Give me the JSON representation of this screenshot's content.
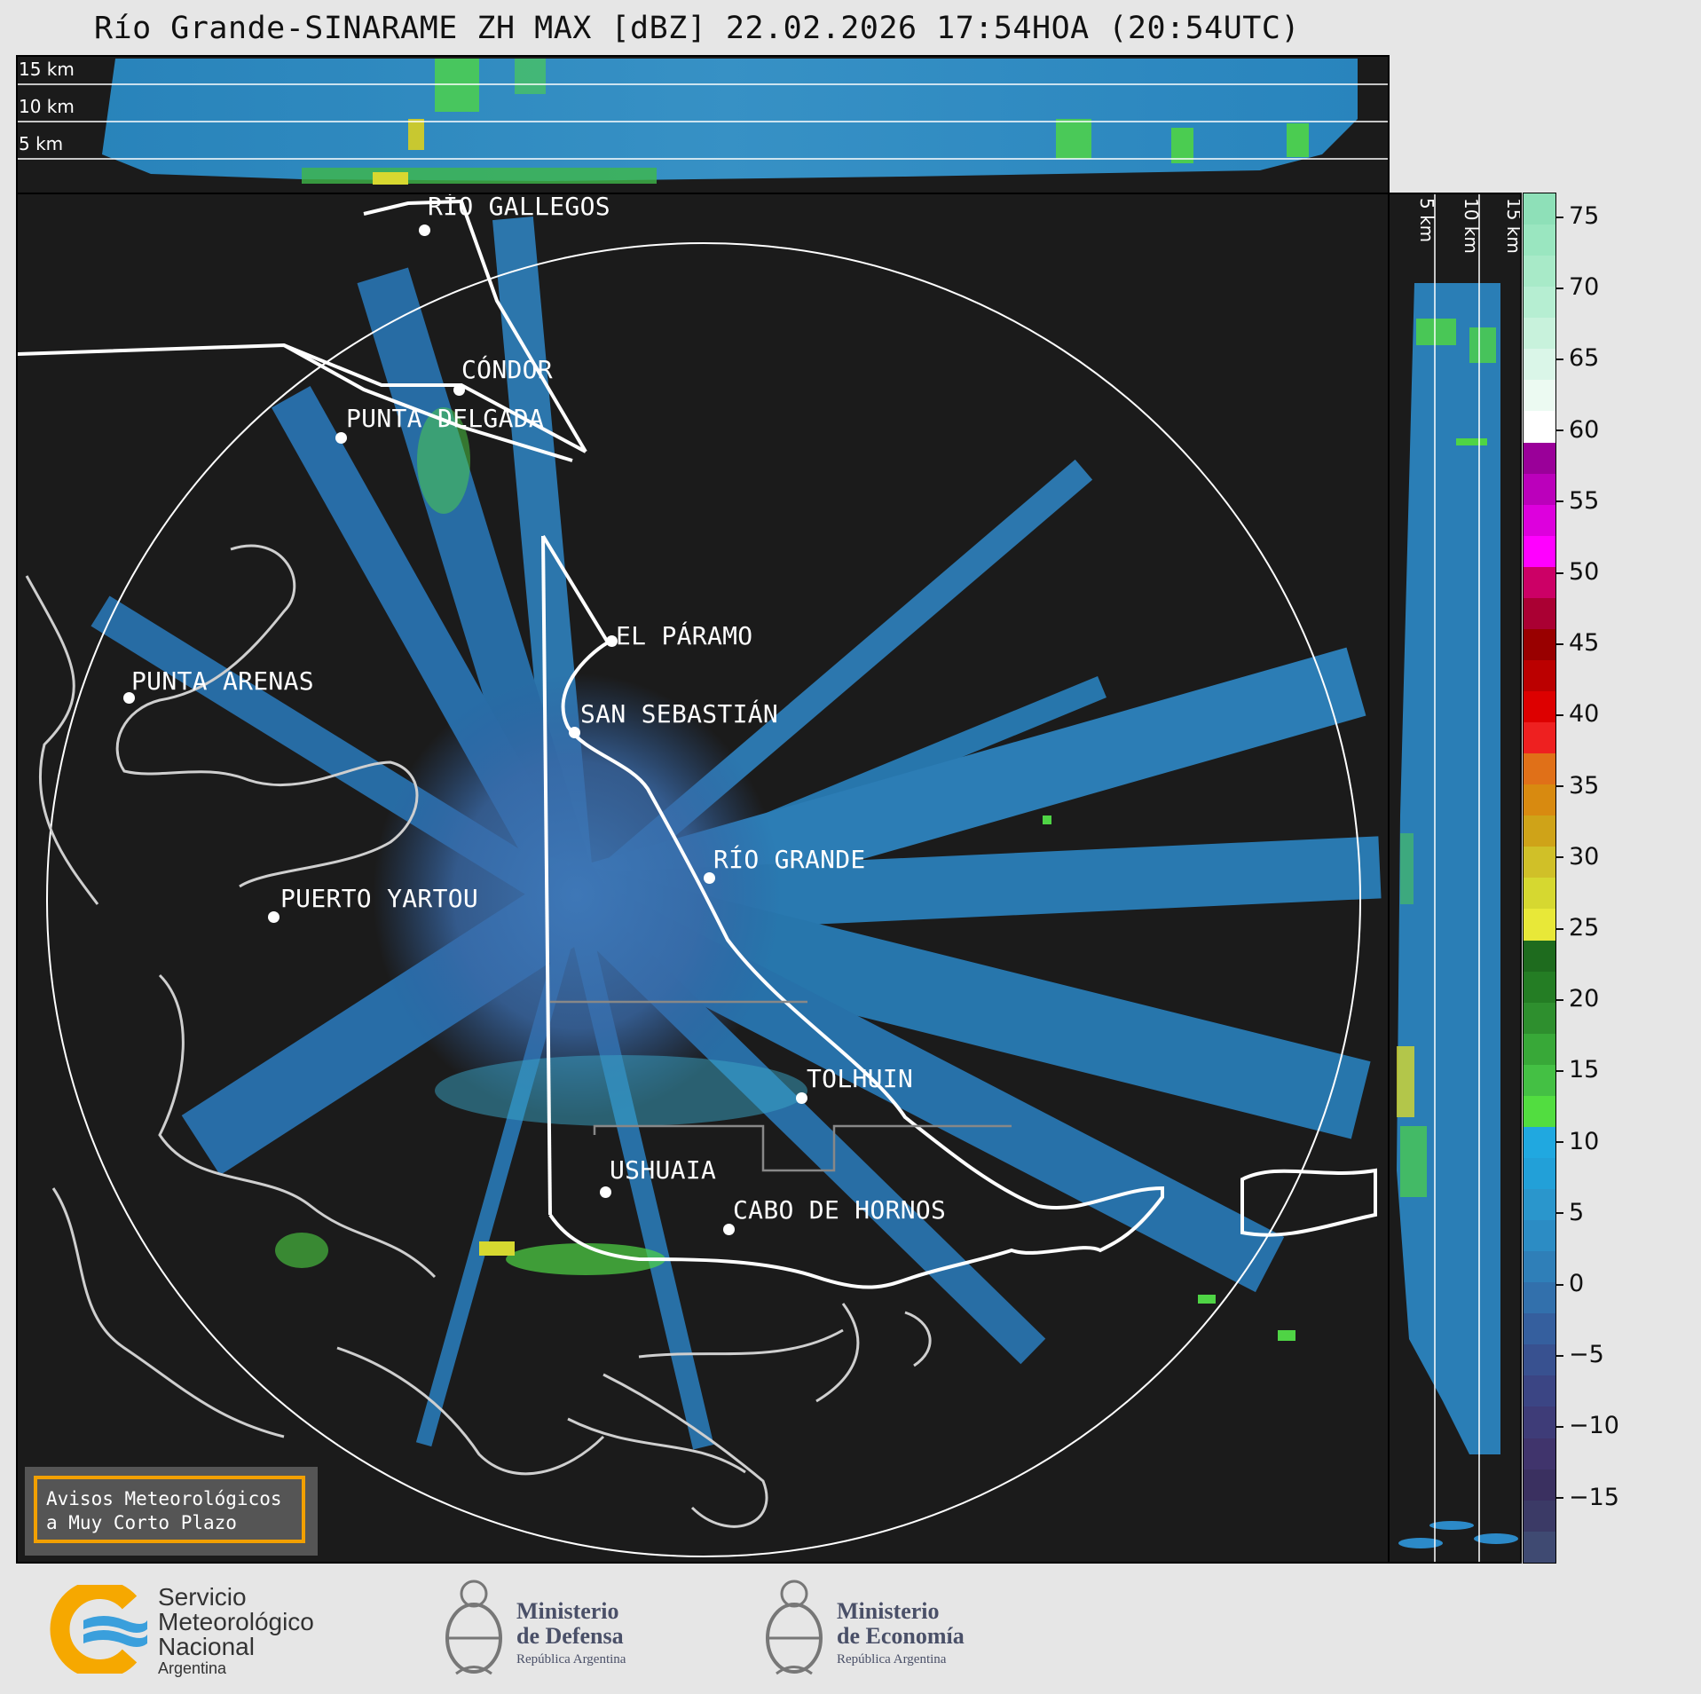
{
  "title": "Río Grande-SINARAME ZH MAX [dBZ] 22.02.2026 17:54HOA (20:54UTC)",
  "top_panel": {
    "labels": [
      "15 km",
      "10 km",
      "5 km"
    ]
  },
  "side_panel": {
    "labels": [
      "5 km",
      "10 km",
      "15 km"
    ]
  },
  "cities": [
    {
      "name": "RÍO GALLEGOS"
    },
    {
      "name": "CÓNDOR"
    },
    {
      "name": "PUNTA DELGADA"
    },
    {
      "name": "EL PÁRAMO"
    },
    {
      "name": "PUNTA ARENAS"
    },
    {
      "name": "SAN SEBASTIÁN"
    },
    {
      "name": "RÍO GRANDE"
    },
    {
      "name": "PUERTO YARTOU"
    },
    {
      "name": "TOLHUIN"
    },
    {
      "name": "USHUAIA"
    },
    {
      "name": "CABO DE HORNOS"
    }
  ],
  "colorbar": {
    "unit": "dBZ",
    "ticks": [
      "75",
      "70",
      "65",
      "60",
      "55",
      "50",
      "45",
      "40",
      "35",
      "30",
      "25",
      "20",
      "15",
      "10",
      "5",
      "0",
      "−5",
      "−10",
      "−15"
    ],
    "colors": [
      "#8ee0b8",
      "#9ae6c0",
      "#a8eac8",
      "#b6eed2",
      "#c8f2dc",
      "#daf6e8",
      "#ecfaf2",
      "#ffffff",
      "#9a0099",
      "#bb00bb",
      "#dd00dd",
      "#ff00ff",
      "#cc0066",
      "#aa0033",
      "#990000",
      "#bb0000",
      "#dd0000",
      "#ee2020",
      "#e07018",
      "#d88a10",
      "#cfa318",
      "#d0c028",
      "#d6d830",
      "#e8e838",
      "#1e6b1e",
      "#247d24",
      "#2e8f2e",
      "#38a838",
      "#44c044",
      "#52dd40",
      "#20a8e0",
      "#22a0d8",
      "#2a96cc",
      "#2c8cc4",
      "#2f7fb8",
      "#3270ac",
      "#355f9e",
      "#385190",
      "#3b4584",
      "#3e3c78",
      "#40346c",
      "#3a3060",
      "#3b3a66",
      "#3f4a72"
    ]
  },
  "notice": {
    "line1": "Avisos Meteorológicos",
    "line2": "a Muy Corto Plazo"
  },
  "logos": {
    "smn": {
      "line1": "Servicio",
      "line2": "Meteorológico",
      "line3": "Nacional",
      "line4": "Argentina"
    },
    "defensa": {
      "line1": "Ministerio",
      "line2": "de Defensa",
      "line3": "República Argentina"
    },
    "economia": {
      "line1": "Ministerio",
      "line2": "de Economía",
      "line3": "República Argentina"
    }
  }
}
